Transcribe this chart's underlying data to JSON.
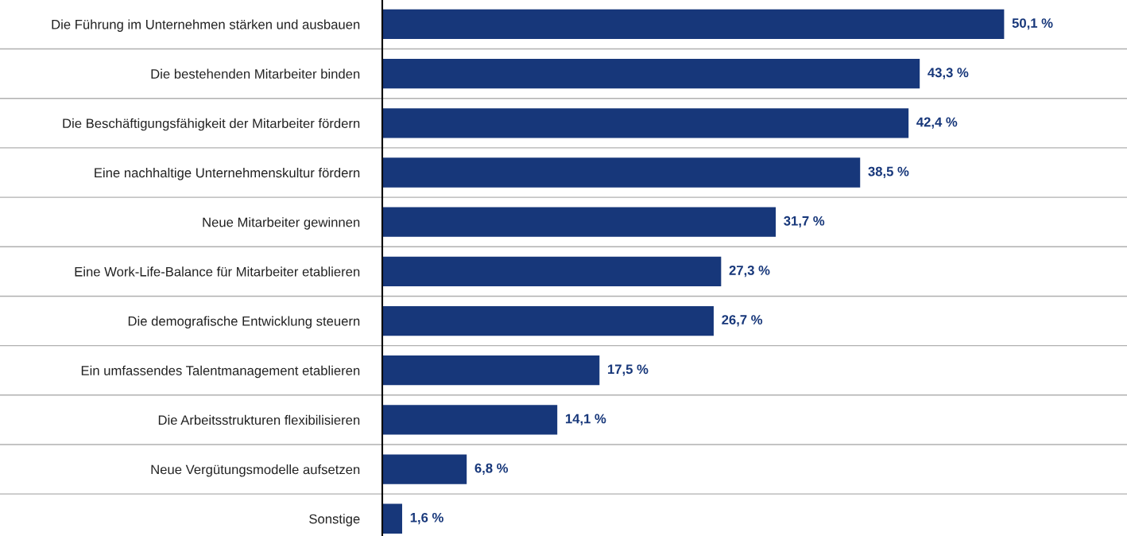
{
  "chart_data": {
    "type": "bar",
    "orientation": "horizontal",
    "categories": [
      "Die Führung im Unternehmen stärken und ausbauen",
      "Die bestehenden Mitarbeiter binden",
      "Die Beschäftigungsfähigkeit der Mitarbeiter fördern",
      "Eine nachhaltige Unternehmenskultur fördern",
      "Neue Mitarbeiter gewinnen",
      "Eine Work-Life-Balance für Mitarbeiter etablieren",
      "Die demografische Entwicklung steuern",
      "Ein umfassendes Talentmanagement etablieren",
      "Die Arbeitsstrukturen flexibilisieren",
      "Neue Vergütungsmodelle aufsetzen",
      "Sonstige"
    ],
    "values": [
      50.1,
      43.3,
      42.4,
      38.5,
      31.7,
      27.3,
      26.7,
      17.5,
      14.1,
      6.8,
      1.6
    ],
    "value_labels": [
      "50,1 %",
      "43,3 %",
      "42,4 %",
      "38,5 %",
      "31,7 %",
      "27,3 %",
      "26,7 %",
      "17,5 %",
      "14,1 %",
      "6,8 %",
      "1,6 %"
    ],
    "color": "#17377a",
    "xlim": [
      0,
      60
    ],
    "tick_labels": "y",
    "grid": "y",
    "legend": false
  }
}
